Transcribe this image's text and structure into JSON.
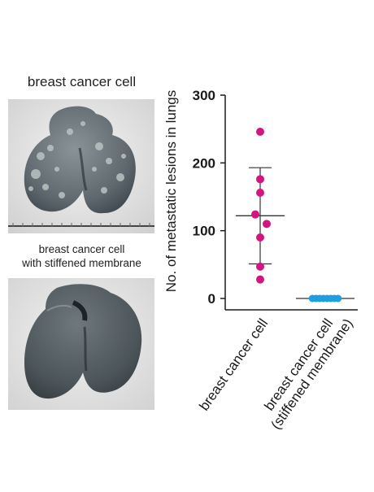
{
  "images": [
    {
      "caption": "breast cancer cell",
      "description_icon": "lung-tissue-photo"
    },
    {
      "caption_line1": "breast cancer cell",
      "caption_line2": "with stiffened membrane",
      "description_icon": "lung-tissue-photo"
    }
  ],
  "chart_data": {
    "type": "scatter",
    "ylabel": "No. of metastatic lesions in lungs",
    "ylim": [
      0,
      300
    ],
    "yticks": [
      "0",
      "100",
      "200",
      "300"
    ],
    "categories": [
      "breast cancer cell",
      "breast cancer cell\n(stiffened membrane)"
    ],
    "category_lines": [
      [
        "breast cancer cell"
      ],
      [
        "breast cancer cell",
        "(stiffened membrane)"
      ]
    ],
    "series": [
      {
        "category": "breast cancer cell",
        "color": "#d4157f",
        "points": [
          246,
          176,
          156,
          124,
          110,
          90,
          47,
          28
        ],
        "mean": 122,
        "sd_upper": 193,
        "sd_lower": 51
      },
      {
        "category": "breast cancer cell (stiffened membrane)",
        "color": "#1f9ee0",
        "points": [
          0,
          0,
          0,
          0,
          0,
          0,
          0,
          0
        ],
        "mean": 0,
        "sd_upper": 0,
        "sd_lower": 0
      }
    ]
  }
}
